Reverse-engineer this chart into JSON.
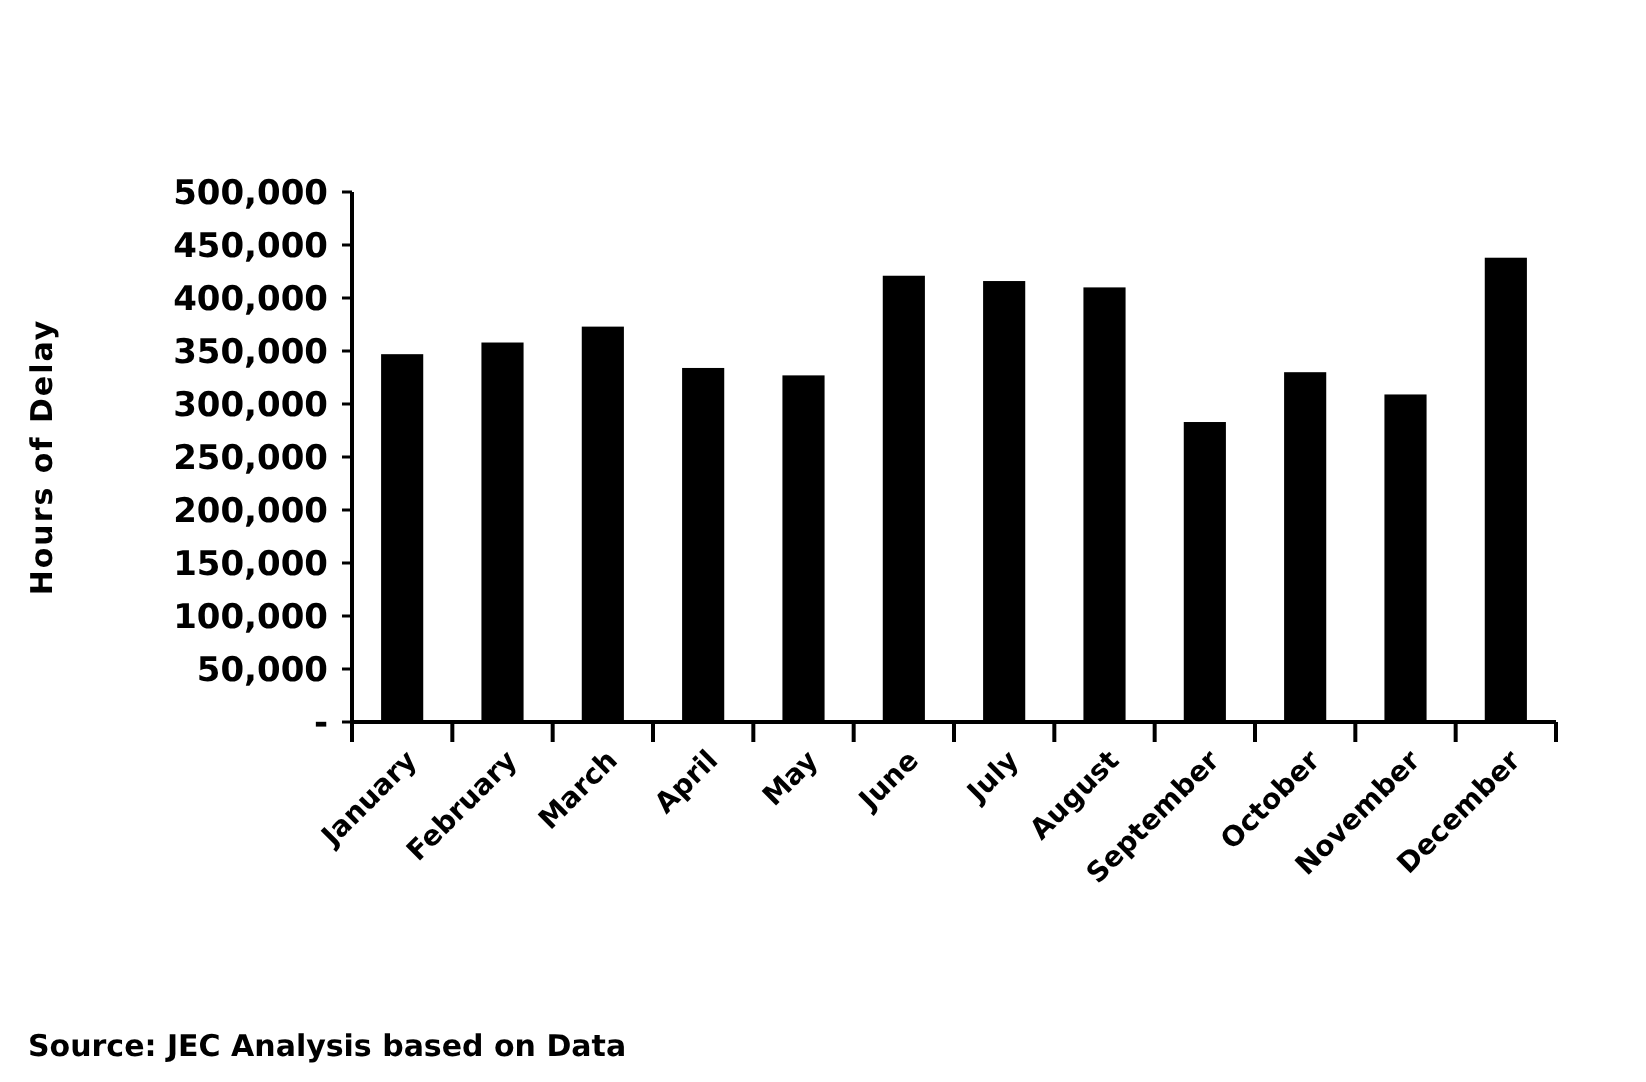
{
  "chart_data": {
    "type": "bar",
    "ylabel": "Hours of Delay",
    "categories": [
      "January",
      "February",
      "March",
      "April",
      "May",
      "June",
      "July",
      "August",
      "September",
      "October",
      "November",
      "December"
    ],
    "values": [
      347000,
      358000,
      373000,
      334000,
      327000,
      421000,
      416000,
      410000,
      283000,
      330000,
      309000,
      438000
    ],
    "color": "#000000",
    "ylim": [
      0,
      500000
    ],
    "yticks": [
      {
        "value": 0,
        "label": "-"
      },
      {
        "value": 50000,
        "label": "50,000"
      },
      {
        "value": 100000,
        "label": "100,000"
      },
      {
        "value": 150000,
        "label": "150,000"
      },
      {
        "value": 200000,
        "label": "200,000"
      },
      {
        "value": 250000,
        "label": "250,000"
      },
      {
        "value": 300000,
        "label": "300,000"
      },
      {
        "value": 350000,
        "label": "350,000"
      },
      {
        "value": 400000,
        "label": "400,000"
      },
      {
        "value": 450000,
        "label": "450,000"
      },
      {
        "value": 500000,
        "label": "500,000"
      }
    ],
    "grid": false,
    "annotations": [
      "Source: JEC Analysis based on Data"
    ]
  }
}
